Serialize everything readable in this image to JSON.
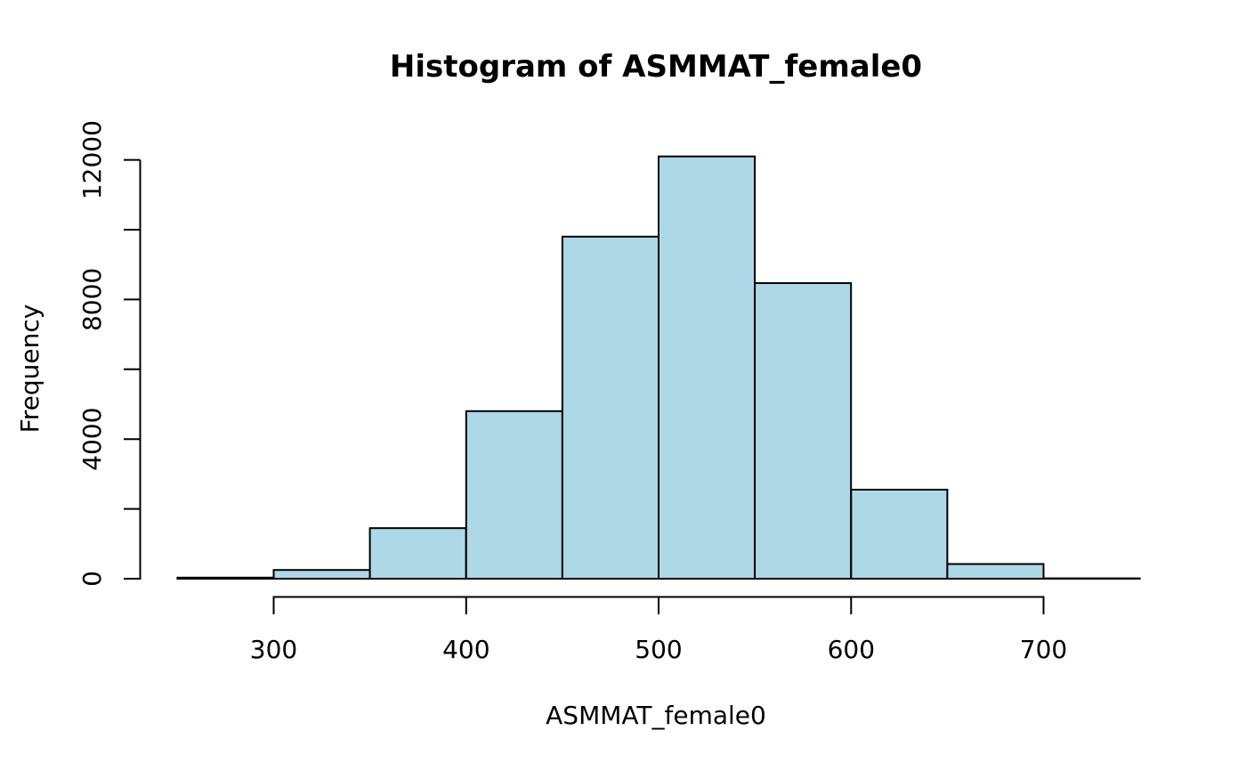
{
  "page": {
    "background": "#FFFFFF"
  },
  "chart_data": {
    "type": "bar",
    "subtype": "histogram",
    "title": "Histogram of ASMMAT_female0",
    "xlabel": "ASMMAT_female0",
    "ylabel": "Frequency",
    "bin_edges": [
      250,
      300,
      350,
      400,
      450,
      500,
      550,
      600,
      650,
      700,
      750
    ],
    "counts": [
      30,
      250,
      1450,
      4800,
      9800,
      12100,
      8470,
      2550,
      420,
      10
    ],
    "x_ticks": [
      300,
      400,
      500,
      600,
      700
    ],
    "x_tick_labels": [
      "300",
      "400",
      "500",
      "600",
      "700"
    ],
    "y_ticks": [
      0,
      2000,
      4000,
      6000,
      8000,
      10000,
      12000
    ],
    "y_tick_labels": [
      "0",
      "",
      "4000",
      "",
      "8000",
      "",
      "12000"
    ],
    "xlim": [
      250,
      750
    ],
    "ylim": [
      0,
      12000
    ],
    "grid": false,
    "legend": "none",
    "bar_fill": "#ADD8E6",
    "bar_stroke": "#000000",
    "axis_color": "#000000"
  }
}
